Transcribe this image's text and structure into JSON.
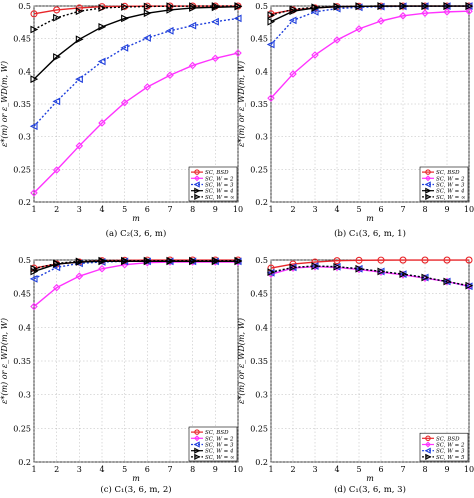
{
  "chart_data": [
    {
      "type": "line",
      "caption": "(a) C₂(3, 6, m)",
      "ylabel": "ε*(m) or ε_WD(m, W)",
      "xlabel": "m",
      "xlim": [
        1,
        10
      ],
      "ylim": [
        0.2,
        0.5
      ],
      "x": [
        1,
        2,
        3,
        4,
        5,
        6,
        7,
        8,
        9,
        10
      ],
      "xticks": [
        "1",
        "2",
        "3",
        "4",
        "5",
        "6",
        "7",
        "8",
        "9",
        "10"
      ],
      "yticks": [
        "0.2",
        "0.25",
        "0.3",
        "0.35",
        "0.4",
        "0.45",
        "0.5"
      ],
      "grid": true,
      "legend_position": "bottom-right",
      "series": [
        {
          "name": "SC, BSD",
          "color": "#e8262a",
          "marker": "circle",
          "dashed": false,
          "values": [
            0.488,
            0.494,
            0.497,
            0.499,
            0.4995,
            0.4998,
            0.4999,
            0.4999,
            0.4999,
            0.4999
          ]
        },
        {
          "name": "SC, W = 2",
          "color": "#ff33ff",
          "marker": "diamond",
          "dashed": false,
          "values": [
            0.214,
            0.249,
            0.286,
            0.321,
            0.352,
            0.376,
            0.394,
            0.409,
            0.42,
            0.428
          ]
        },
        {
          "name": "SC, W = 3",
          "color": "#1f3fdc",
          "marker": "triangle-left",
          "dashed": true,
          "values": [
            0.316,
            0.354,
            0.388,
            0.415,
            0.436,
            0.451,
            0.462,
            0.47,
            0.476,
            0.481
          ]
        },
        {
          "name": "SC, W = 4",
          "color": "#000000",
          "marker": "triangle-right",
          "dashed": false,
          "values": [
            0.388,
            0.422,
            0.449,
            0.468,
            0.481,
            0.489,
            0.494,
            0.497,
            0.498,
            0.499
          ]
        },
        {
          "name": "SC, W = ∞",
          "color": "#000000",
          "marker": "triangle-right",
          "dashed": true,
          "values": [
            0.464,
            0.482,
            0.492,
            0.497,
            0.4985,
            0.4993,
            0.4997,
            0.4998,
            0.4999,
            0.4999
          ]
        }
      ]
    },
    {
      "type": "line",
      "caption": "(b) C₁(3, 6, m, 1)",
      "ylabel": "ε*(m) or ε_WD(m, W)",
      "xlabel": "m",
      "xlim": [
        1,
        10
      ],
      "ylim": [
        0.2,
        0.5
      ],
      "x": [
        1,
        2,
        3,
        4,
        5,
        6,
        7,
        8,
        9,
        10
      ],
      "xticks": [
        "1",
        "2",
        "3",
        "4",
        "5",
        "6",
        "7",
        "8",
        "9",
        "10"
      ],
      "yticks": [
        "0.2",
        "0.25",
        "0.3",
        "0.35",
        "0.4",
        "0.45",
        "0.5"
      ],
      "grid": true,
      "legend_position": "bottom-right",
      "series": [
        {
          "name": "SC, BSD",
          "color": "#e8262a",
          "marker": "circle",
          "dashed": false,
          "values": [
            0.488,
            0.494,
            0.497,
            0.499,
            0.4995,
            0.4998,
            0.4999,
            0.4999,
            0.4999,
            0.4999
          ]
        },
        {
          "name": "SC, W = 2",
          "color": "#ff33ff",
          "marker": "diamond",
          "dashed": false,
          "values": [
            0.359,
            0.396,
            0.425,
            0.448,
            0.465,
            0.477,
            0.485,
            0.489,
            0.491,
            0.492
          ]
        },
        {
          "name": "SC, W = 3",
          "color": "#1f3fdc",
          "marker": "triangle-left",
          "dashed": true,
          "values": [
            0.441,
            0.478,
            0.491,
            0.496,
            0.498,
            0.499,
            0.4995,
            0.4997,
            0.4998,
            0.4999
          ]
        },
        {
          "name": "SC, W = 4",
          "color": "#000000",
          "marker": "triangle-right",
          "dashed": false,
          "values": [
            0.476,
            0.492,
            0.497,
            0.499,
            0.4995,
            0.4998,
            0.4999,
            0.4999,
            0.4999,
            0.4999
          ]
        },
        {
          "name": "SC, W = ∞",
          "color": "#000000",
          "marker": "triangle-right",
          "dashed": true,
          "values": [
            0.486,
            0.495,
            0.498,
            0.499,
            0.4997,
            0.4999,
            0.4999,
            0.4999,
            0.4999,
            0.4999
          ]
        }
      ]
    },
    {
      "type": "line",
      "caption": "(c) C₁(3, 6, m, 2)",
      "ylabel": "ε*(m) or ε_WD(m, W)",
      "xlabel": "m",
      "xlim": [
        1,
        10
      ],
      "ylim": [
        0.2,
        0.5
      ],
      "x": [
        1,
        2,
        3,
        4,
        5,
        6,
        7,
        8,
        9,
        10
      ],
      "xticks": [
        "1",
        "2",
        "3",
        "4",
        "5",
        "6",
        "7",
        "8",
        "9",
        "10"
      ],
      "yticks": [
        "0.2",
        "0.25",
        "0.3",
        "0.35",
        "0.4",
        "0.45",
        "0.5"
      ],
      "grid": true,
      "legend_position": "bottom-right",
      "series": [
        {
          "name": "SC, BSD",
          "color": "#e8262a",
          "marker": "circle",
          "dashed": false,
          "values": [
            0.488,
            0.494,
            0.497,
            0.499,
            0.4995,
            0.4998,
            0.4999,
            0.4999,
            0.4999,
            0.4999
          ]
        },
        {
          "name": "SC, W = 2",
          "color": "#ff33ff",
          "marker": "diamond",
          "dashed": false,
          "values": [
            0.431,
            0.459,
            0.476,
            0.487,
            0.493,
            0.496,
            0.497,
            0.497,
            0.497,
            0.497
          ]
        },
        {
          "name": "SC, W = 3",
          "color": "#1f3fdc",
          "marker": "triangle-left",
          "dashed": true,
          "values": [
            0.472,
            0.489,
            0.495,
            0.497,
            0.498,
            0.498,
            0.498,
            0.498,
            0.498,
            0.498
          ]
        },
        {
          "name": "SC, W = 4",
          "color": "#000000",
          "marker": "triangle-right",
          "dashed": false,
          "values": [
            0.483,
            0.494,
            0.497,
            0.498,
            0.498,
            0.498,
            0.498,
            0.498,
            0.498,
            0.498
          ]
        },
        {
          "name": "SC, W = ∞",
          "color": "#000000",
          "marker": "triangle-right",
          "dashed": true,
          "values": [
            0.487,
            0.495,
            0.498,
            0.499,
            0.499,
            0.499,
            0.499,
            0.499,
            0.499,
            0.499
          ]
        }
      ]
    },
    {
      "type": "line",
      "caption": "(d) C₁(3, 6, m, 3)",
      "ylabel": "ε*(m) or ε_WD(m, W)",
      "xlabel": "m",
      "xlim": [
        1,
        10
      ],
      "ylim": [
        0.2,
        0.5
      ],
      "x": [
        1,
        2,
        3,
        4,
        5,
        6,
        7,
        8,
        9,
        10
      ],
      "xticks": [
        "1",
        "2",
        "3",
        "4",
        "5",
        "6",
        "7",
        "8",
        "9",
        "10"
      ],
      "yticks": [
        "0.2",
        "0.25",
        "0.3",
        "0.35",
        "0.4",
        "0.45",
        "0.5"
      ],
      "grid": true,
      "legend_position": "bottom-right",
      "series": [
        {
          "name": "SC, BSD",
          "color": "#e8262a",
          "marker": "circle",
          "dashed": false,
          "values": [
            0.488,
            0.494,
            0.497,
            0.499,
            0.4995,
            0.4998,
            0.4999,
            0.4999,
            0.4999,
            0.4999
          ]
        },
        {
          "name": "SC, W = 2",
          "color": "#ff33ff",
          "marker": "diamond",
          "dashed": false,
          "values": [
            0.479,
            0.488,
            0.49,
            0.489,
            0.486,
            0.482,
            0.478,
            0.473,
            0.468,
            0.461
          ]
        },
        {
          "name": "SC, W = 3",
          "color": "#1f3fdc",
          "marker": "triangle-left",
          "dashed": true,
          "values": [
            0.481,
            0.489,
            0.491,
            0.49,
            0.487,
            0.483,
            0.479,
            0.474,
            0.468,
            0.461
          ]
        },
        {
          "name": "SC, W = 5",
          "color": "#000000",
          "marker": "triangle-right",
          "dashed": true,
          "values": [
            0.482,
            0.489,
            0.491,
            0.49,
            0.487,
            0.483,
            0.479,
            0.474,
            0.468,
            0.462
          ]
        }
      ]
    }
  ]
}
